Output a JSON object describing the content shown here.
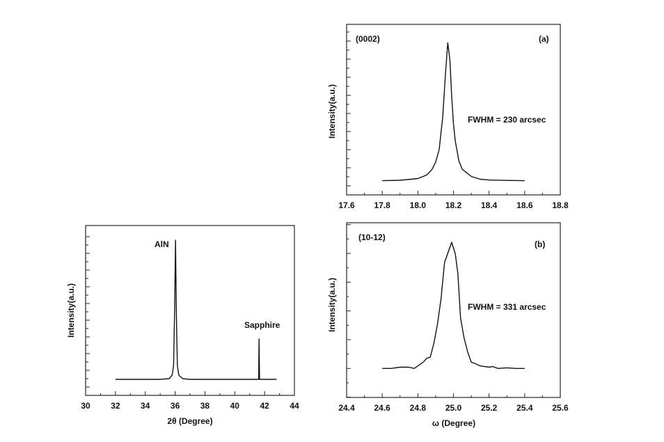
{
  "chart_data": [
    {
      "id": "xrd",
      "type": "line",
      "xlabel": "2θ (Degree)",
      "ylabel": "Intensity(a.u.)",
      "xlim": [
        30,
        44
      ],
      "ylim": [
        -0.115,
        1.105
      ],
      "xticks": [
        "30",
        "32",
        "34",
        "36",
        "38",
        "40",
        "42",
        "44"
      ],
      "annotations": [
        {
          "text": "AlN",
          "x": 36.03,
          "y": 1.0
        },
        {
          "text": "Sapphire",
          "x": 41.63,
          "y": 0.29
        }
      ],
      "x": [
        32,
        35,
        35.6,
        35.8,
        35.9,
        35.97,
        36.03,
        36.08,
        36.15,
        36.25,
        36.5,
        37,
        41.6,
        41.63,
        41.66,
        42.8
      ],
      "y": [
        0,
        0,
        0.005,
        0.03,
        0.1,
        0.5,
        1.0,
        0.5,
        0.1,
        0.03,
        0.005,
        0,
        0,
        0.29,
        0,
        0
      ]
    },
    {
      "id": "a",
      "type": "line",
      "panel_label": "(a)",
      "reflection": "(0002)",
      "fwhm": "FWHM = 230 arcsec",
      "ylabel": "Intensity(a.u.)",
      "xlim": [
        17.6,
        18.8
      ],
      "ylim": [
        -0.1,
        1.1
      ],
      "xticks": [
        "17.6",
        "17.8",
        "18.0",
        "18.2",
        "18.4",
        "18.6",
        "18.8"
      ],
      "x": [
        17.8,
        17.9,
        18.0,
        18.05,
        18.08,
        18.1,
        18.12,
        18.14,
        18.155,
        18.168,
        18.18,
        18.19,
        18.2,
        18.21,
        18.23,
        18.25,
        18.3,
        18.35,
        18.4,
        18.5,
        18.6
      ],
      "y": [
        0,
        0.003,
        0.015,
        0.04,
        0.08,
        0.13,
        0.22,
        0.45,
        0.75,
        0.97,
        0.85,
        0.6,
        0.4,
        0.28,
        0.14,
        0.08,
        0.03,
        0.01,
        0.005,
        0.002,
        0
      ]
    },
    {
      "id": "b",
      "type": "line",
      "panel_label": "(b)",
      "reflection": "(10-12)",
      "fwhm": "FWHM = 331 arcsec",
      "xlabel": "ω (Degree)",
      "ylabel": "Intensity(a.u.)",
      "xlim": [
        24.4,
        25.6
      ],
      "ylim": [
        -0.23,
        1.155
      ],
      "xticks": [
        "24.4",
        "24.6",
        "24.8",
        "25.0",
        "25.2",
        "25.4",
        "25.6"
      ],
      "x": [
        24.6,
        24.65,
        24.7,
        24.75,
        24.78,
        24.8,
        24.83,
        24.85,
        24.87,
        24.89,
        24.91,
        24.93,
        24.95,
        24.97,
        24.99,
        25.01,
        25.025,
        25.04,
        25.06,
        25.08,
        25.1,
        25.12,
        25.15,
        25.2,
        25.22,
        25.25,
        25.3,
        25.35,
        25.4
      ],
      "y": [
        0,
        0,
        0.01,
        0.01,
        0,
        0.02,
        0.05,
        0.08,
        0.09,
        0.2,
        0.35,
        0.55,
        0.84,
        0.92,
        1.0,
        0.91,
        0.75,
        0.4,
        0.24,
        0.13,
        0.05,
        0.04,
        0.02,
        0.01,
        0.015,
        0,
        0.005,
        0,
        0
      ]
    }
  ]
}
